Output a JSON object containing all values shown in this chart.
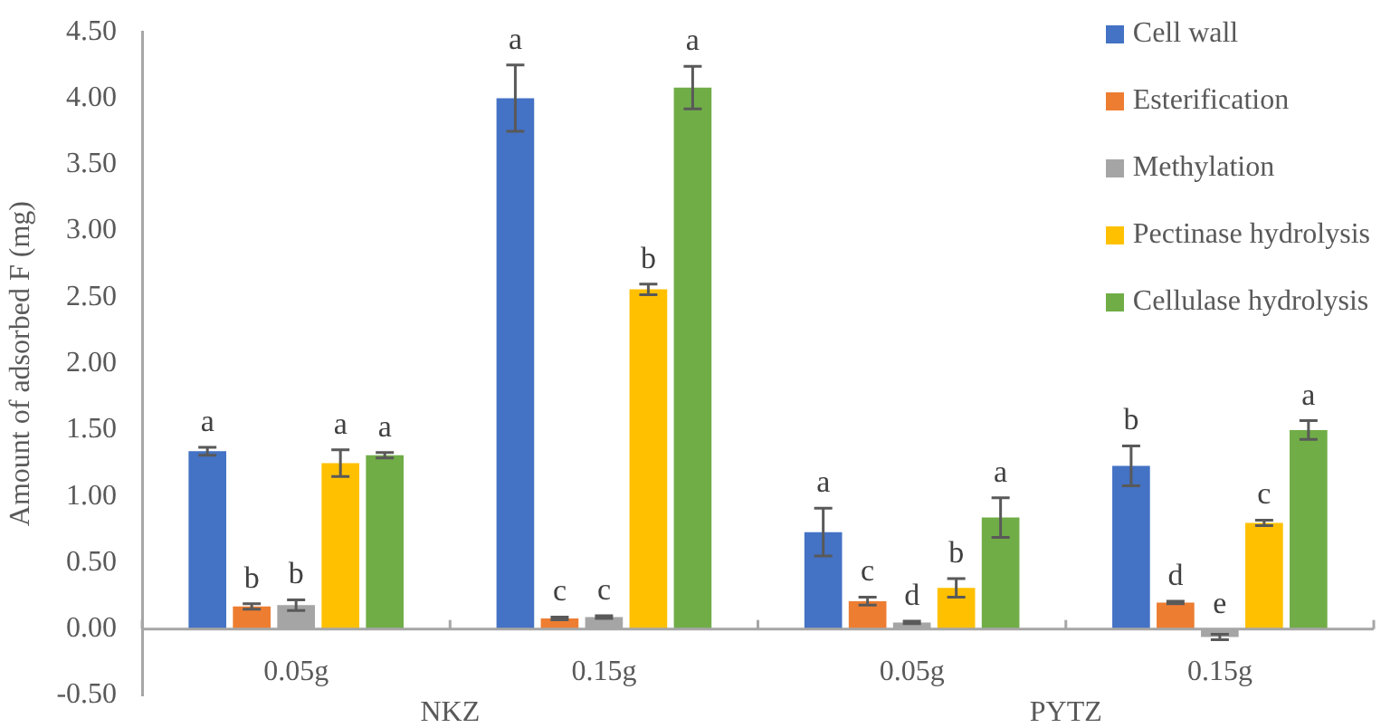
{
  "chart_data": {
    "type": "bar",
    "ylabel": "Amount of adsorbed F (mg)",
    "categories": [
      "0.05g",
      "0.15g",
      "0.05g",
      "0.15g"
    ],
    "series": [
      {
        "name": "Cell wall",
        "color": "#4472c4",
        "values": [
          1.34,
          4.0,
          0.73,
          1.23
        ],
        "errors": [
          0.03,
          0.25,
          0.18,
          0.15
        ],
        "value_labels": [
          "a",
          "a",
          "a",
          "b"
        ]
      },
      {
        "name": "Esterification",
        "color": "#ed7d31",
        "values": [
          0.17,
          0.08,
          0.21,
          0.2
        ],
        "errors": [
          0.02,
          0.01,
          0.03,
          0.01
        ],
        "value_labels": [
          "b",
          "c",
          "c",
          "d"
        ]
      },
      {
        "name": "Methylation",
        "color": "#a5a5a5",
        "values": [
          0.18,
          0.09,
          0.05,
          -0.06
        ],
        "errors": [
          0.04,
          0.01,
          0.01,
          0.02
        ],
        "value_labels": [
          "b",
          "c",
          "d",
          "e"
        ]
      },
      {
        "name": "Pectinase hydrolysis",
        "color": "#ffc000",
        "values": [
          1.25,
          2.56,
          0.31,
          0.8
        ],
        "errors": [
          0.1,
          0.04,
          0.07,
          0.02
        ],
        "value_labels": [
          "a",
          "b",
          "b",
          "c"
        ]
      },
      {
        "name": "Cellulase hydrolysis",
        "color": "#70ad47",
        "values": [
          1.31,
          4.08,
          0.84,
          1.5
        ],
        "errors": [
          0.02,
          0.16,
          0.15,
          0.07
        ],
        "value_labels": [
          "a",
          "a",
          "a",
          "a"
        ]
      }
    ],
    "ylim": [
      -0.5,
      4.5
    ],
    "yticks": [
      {
        "value": -0.5,
        "label": "-0.50"
      },
      {
        "value": 0,
        "label": "0.00"
      },
      {
        "value": 0.5,
        "label": "0.50"
      },
      {
        "value": 1,
        "label": "1.00"
      },
      {
        "value": 1.5,
        "label": "1.50"
      },
      {
        "value": 2,
        "label": "2.00"
      },
      {
        "value": 2.5,
        "label": "2.50"
      },
      {
        "value": 3,
        "label": "3.00"
      },
      {
        "value": 3.5,
        "label": "3.50"
      },
      {
        "value": 4,
        "label": "4.00"
      },
      {
        "value": 4.5,
        "label": "4.50"
      }
    ],
    "annotations": [
      "NKZ",
      "PYTZ"
    ],
    "grid": false,
    "legend": "top right"
  }
}
